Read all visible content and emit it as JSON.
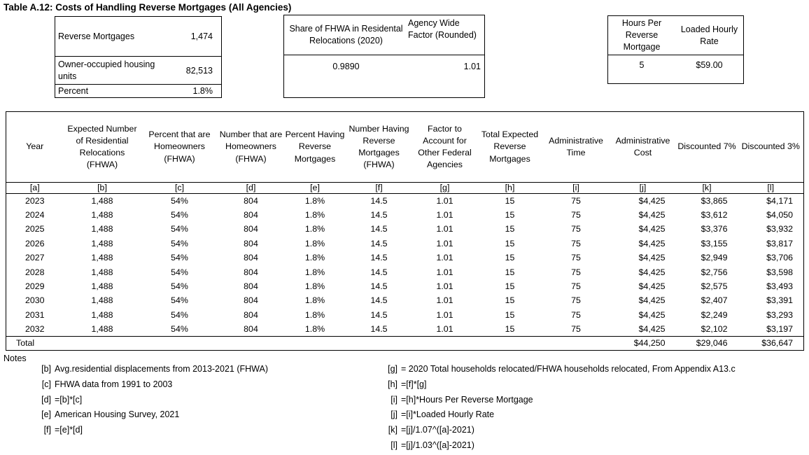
{
  "title": "Table A.12: Costs of Handling Reverse Mortgages (All Agencies)",
  "boxes": {
    "mortgage_stats": {
      "rows": [
        {
          "label": "Reverse Mortgages",
          "value": "1,474"
        },
        {
          "label": "Owner-occupied housing units",
          "value": "82,513"
        },
        {
          "label": "Percent",
          "value": "1.8%"
        }
      ]
    },
    "fhwa_share": {
      "col1_header": "Share of FHWA in Residental Relocations (2020)",
      "col1_value": "0.9890",
      "col2_header": "Agency Wide Factor (Rounded)",
      "col2_value": "1.01"
    },
    "rates": {
      "col1_header": "Hours Per Reverse Mortgage",
      "col1_value": "5",
      "col2_header": "Loaded Hourly Rate",
      "col2_value": "$59.00"
    }
  },
  "main_table": {
    "column_headers": [
      "Year",
      "Expected Number of Residential Relocations (FHWA)",
      "Percent that are Homeowners (FHWA)",
      "Number that are Homeowners (FHWA)",
      "Percent Having Reverse Mortgages",
      "Number Having Reverse Mortgages (FHWA)",
      "Factor to Account for Other Federal Agencies",
      "Total Expected Reverse Mortgages",
      "Administrative Time",
      "Administrative Cost",
      "Discounted 7%",
      "Discounted 3%"
    ],
    "column_keys": [
      "[a]",
      "[b]",
      "[c]",
      "[d]",
      "[e]",
      "[f]",
      "[g]",
      "[h]",
      "[i]",
      "[j]",
      "[k]",
      "[l]"
    ],
    "rows": [
      [
        "2023",
        "1,488",
        "54%",
        "804",
        "1.8%",
        "14.5",
        "1.01",
        "15",
        "75",
        "$4,425",
        "$3,865",
        "$4,171"
      ],
      [
        "2024",
        "1,488",
        "54%",
        "804",
        "1.8%",
        "14.5",
        "1.01",
        "15",
        "75",
        "$4,425",
        "$3,612",
        "$4,050"
      ],
      [
        "2025",
        "1,488",
        "54%",
        "804",
        "1.8%",
        "14.5",
        "1.01",
        "15",
        "75",
        "$4,425",
        "$3,376",
        "$3,932"
      ],
      [
        "2026",
        "1,488",
        "54%",
        "804",
        "1.8%",
        "14.5",
        "1.01",
        "15",
        "75",
        "$4,425",
        "$3,155",
        "$3,817"
      ],
      [
        "2027",
        "1,488",
        "54%",
        "804",
        "1.8%",
        "14.5",
        "1.01",
        "15",
        "75",
        "$4,425",
        "$2,949",
        "$3,706"
      ],
      [
        "2028",
        "1,488",
        "54%",
        "804",
        "1.8%",
        "14.5",
        "1.01",
        "15",
        "75",
        "$4,425",
        "$2,756",
        "$3,598"
      ],
      [
        "2029",
        "1,488",
        "54%",
        "804",
        "1.8%",
        "14.5",
        "1.01",
        "15",
        "75",
        "$4,425",
        "$2,575",
        "$3,493"
      ],
      [
        "2030",
        "1,488",
        "54%",
        "804",
        "1.8%",
        "14.5",
        "1.01",
        "15",
        "75",
        "$4,425",
        "$2,407",
        "$3,391"
      ],
      [
        "2031",
        "1,488",
        "54%",
        "804",
        "1.8%",
        "14.5",
        "1.01",
        "15",
        "75",
        "$4,425",
        "$2,249",
        "$3,293"
      ],
      [
        "2032",
        "1,488",
        "54%",
        "804",
        "1.8%",
        "14.5",
        "1.01",
        "15",
        "75",
        "$4,425",
        "$2,102",
        "$3,197"
      ]
    ],
    "total_row": {
      "label": "Total",
      "administrative_cost": "$44,250",
      "discounted_7": "$29,046",
      "discounted_3": "$36,647"
    }
  },
  "notes": {
    "label": "Notes",
    "left": [
      {
        "key": "[b]",
        "text": "Avg.residential displacements from 2013-2021 (FHWA)"
      },
      {
        "key": "[c]",
        "text": "FHWA data from 1991 to 2003"
      },
      {
        "key": "[d]",
        "text": "=[b]*[c]"
      },
      {
        "key": "[e]",
        "text": "American Housing Survey, 2021"
      },
      {
        "key": "[f]",
        "text": "=[e]*[d]"
      }
    ],
    "right": [
      {
        "key": "[g]",
        "text": "= 2020 Total households relocated/FHWA households relocated, From Appendix A13.c"
      },
      {
        "key": "[h]",
        "text": "=[f]*[g]"
      },
      {
        "key": "[i]",
        "text": "=[h]*Hours Per Reverse Mortgage"
      },
      {
        "key": "[j]",
        "text": "=[i]*Loaded Hourly Rate"
      },
      {
        "key": "[k]",
        "text": "=[j]/1.07^([a]-2021)"
      },
      {
        "key": "[l]",
        "text": "=[j]/1.03^([a]-2021)"
      }
    ]
  }
}
